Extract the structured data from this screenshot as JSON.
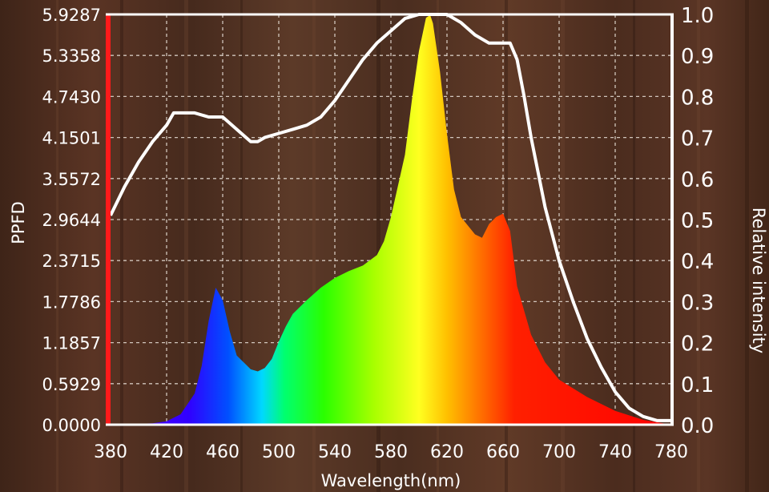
{
  "chart_data": {
    "type": "area",
    "xlabel": "Wavelength(nm)",
    "ylabel_left": "PPFD",
    "ylabel_right": "Relative intensity",
    "xlim": [
      380,
      780
    ],
    "x_ticks": [
      "380",
      "420",
      "460",
      "500",
      "540",
      "580",
      "620",
      "660",
      "700",
      "740",
      "780"
    ],
    "ylim_left": [
      0,
      5.9287
    ],
    "y_ticks_left": [
      "0.0000",
      "0.5929",
      "1.1857",
      "1.7786",
      "2.3715",
      "2.9644",
      "3.5572",
      "4.1501",
      "4.7430",
      "5.3358",
      "5.9287"
    ],
    "ylim_right": [
      0,
      1.0
    ],
    "y_ticks_right": [
      "0.0",
      "0.1",
      "0.2",
      "0.3",
      "0.4",
      "0.5",
      "0.6",
      "0.7",
      "0.8",
      "0.9",
      "1.0"
    ],
    "grid": true,
    "series": [
      {
        "axis": "right",
        "color": "#ffffff",
        "x": [
          380,
          390,
          400,
          410,
          420,
          425,
          430,
          440,
          450,
          460,
          470,
          480,
          485,
          490,
          500,
          510,
          520,
          530,
          540,
          550,
          560,
          570,
          580,
          590,
          600,
          605,
          610,
          620,
          630,
          640,
          650,
          660,
          665,
          670,
          675,
          680,
          690,
          700,
          710,
          720,
          730,
          740,
          750,
          760,
          770,
          780
        ],
        "values": [
          0.51,
          0.58,
          0.64,
          0.69,
          0.73,
          0.76,
          0.76,
          0.76,
          0.75,
          0.75,
          0.72,
          0.69,
          0.69,
          0.7,
          0.71,
          0.72,
          0.73,
          0.75,
          0.79,
          0.84,
          0.89,
          0.93,
          0.96,
          0.99,
          1.0,
          1.0,
          1.0,
          1.0,
          0.98,
          0.95,
          0.93,
          0.93,
          0.93,
          0.89,
          0.8,
          0.7,
          0.53,
          0.4,
          0.3,
          0.21,
          0.14,
          0.08,
          0.04,
          0.02,
          0.01,
          0.01
        ]
      },
      {
        "axis": "left",
        "fill": "spectrum",
        "x": [
          380,
          410,
          420,
          430,
          440,
          445,
          450,
          455,
          460,
          465,
          470,
          480,
          485,
          490,
          495,
          500,
          505,
          510,
          520,
          530,
          540,
          550,
          560,
          570,
          575,
          580,
          590,
          595,
          600,
          605,
          608,
          610,
          615,
          620,
          625,
          630,
          640,
          645,
          650,
          655,
          660,
          665,
          670,
          680,
          690,
          700,
          720,
          740,
          760,
          780
        ],
        "values": [
          0.0,
          0.02,
          0.05,
          0.15,
          0.45,
          0.85,
          1.5,
          1.98,
          1.8,
          1.35,
          1.0,
          0.8,
          0.77,
          0.82,
          0.95,
          1.2,
          1.42,
          1.6,
          1.8,
          1.98,
          2.12,
          2.22,
          2.3,
          2.45,
          2.65,
          3.0,
          3.9,
          4.7,
          5.4,
          5.88,
          5.92,
          5.8,
          5.1,
          4.2,
          3.4,
          3.0,
          2.75,
          2.7,
          2.9,
          3.0,
          3.05,
          2.8,
          2.0,
          1.3,
          0.9,
          0.65,
          0.4,
          0.2,
          0.07,
          0.0
        ]
      }
    ]
  }
}
